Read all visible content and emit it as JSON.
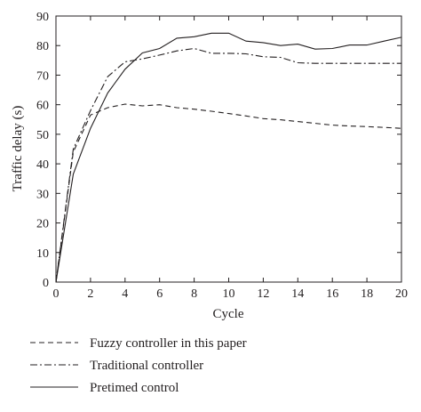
{
  "chart_data": {
    "type": "line",
    "title": "",
    "xlabel": "Cycle",
    "ylabel": "Traffic delay (s)",
    "xlim": [
      0,
      20
    ],
    "ylim": [
      0,
      90
    ],
    "xticks": [
      0,
      2,
      4,
      6,
      8,
      10,
      12,
      14,
      16,
      18,
      20
    ],
    "yticks": [
      0,
      10,
      20,
      30,
      40,
      50,
      60,
      70,
      80,
      90
    ],
    "grid": false,
    "legend_position": "below",
    "colors": {
      "line": "#231f20",
      "axis": "#231f20"
    },
    "series": [
      {
        "name": "Fuzzy controller in this paper",
        "style": "dashed",
        "x": [
          0,
          1,
          2,
          3,
          4,
          5,
          6,
          7,
          8,
          9,
          10,
          11,
          12,
          13,
          14,
          15,
          16,
          17,
          18,
          19,
          20
        ],
        "y": [
          0,
          44,
          56.5,
          59,
          60.2,
          59.6,
          60,
          59,
          58.5,
          57.8,
          57,
          56.2,
          55.3,
          54.9,
          54.3,
          53.7,
          53.1,
          52.8,
          52.6,
          52.3,
          52
        ]
      },
      {
        "name": "Traditional controller",
        "style": "dashdot",
        "x": [
          0,
          1,
          2,
          3,
          4,
          5,
          6,
          7,
          8,
          9,
          10,
          11,
          12,
          13,
          14,
          15,
          16,
          17,
          18,
          19,
          20
        ],
        "y": [
          0,
          45,
          58,
          69.5,
          74.5,
          75.5,
          76.8,
          78.2,
          79,
          77.4,
          77.4,
          77.2,
          76.2,
          76,
          74.2,
          74,
          74,
          74,
          74,
          74,
          74
        ]
      },
      {
        "name": "Pretimed control",
        "style": "solid",
        "x": [
          0,
          1,
          2,
          3,
          4,
          5,
          6,
          7,
          8,
          9,
          10,
          11,
          12,
          13,
          14,
          15,
          16,
          17,
          18,
          19,
          20
        ],
        "y": [
          0,
          36.5,
          52,
          64,
          72,
          77.5,
          79,
          82.5,
          83,
          84.2,
          84.2,
          81.5,
          81,
          80,
          80.5,
          78.8,
          79,
          80.2,
          80.2,
          81.5,
          82.8
        ]
      }
    ]
  }
}
